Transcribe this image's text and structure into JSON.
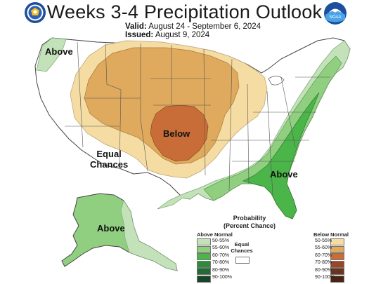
{
  "title": "Weeks 3-4 Precipitation Outlook",
  "valid_label": "Valid:",
  "valid_dates": "August 24 - September 6, 2024",
  "issued_label": "Issued:",
  "issued_date": "August 9, 2024",
  "logos": {
    "left": "commerce-seal-icon",
    "right": "noaa-icon",
    "noaa_text": "NOAA"
  },
  "map_labels": {
    "above_northwest": "Above",
    "below_central": "Below",
    "equal_chances": [
      "Equal",
      "Chances"
    ],
    "above_southeast": "Above",
    "above_alaska": "Above"
  },
  "legend": {
    "title": [
      "Probability",
      "(Percent Chance)"
    ],
    "above_heading": "Above Normal",
    "below_heading": "Below Normal",
    "equal_chances": [
      "Equal",
      "Chances"
    ],
    "above": [
      {
        "label": "50-55%",
        "color": "#c3e2b9"
      },
      {
        "label": "55-60%",
        "color": "#90cf80"
      },
      {
        "label": "60-70%",
        "color": "#4bb549"
      },
      {
        "label": "70-80%",
        "color": "#2e8b3a"
      },
      {
        "label": "80-90%",
        "color": "#236b33"
      },
      {
        "label": "90-100%",
        "color": "#17452a"
      }
    ],
    "below": [
      {
        "label": "50-55%",
        "color": "#f4dca3"
      },
      {
        "label": "55-60%",
        "color": "#dfaa5d"
      },
      {
        "label": "60-70%",
        "color": "#c86d38"
      },
      {
        "label": "70-80%",
        "color": "#9b4528"
      },
      {
        "label": "80-90%",
        "color": "#6b341c"
      },
      {
        "label": "90-100%",
        "color": "#4a2412"
      }
    ]
  }
}
